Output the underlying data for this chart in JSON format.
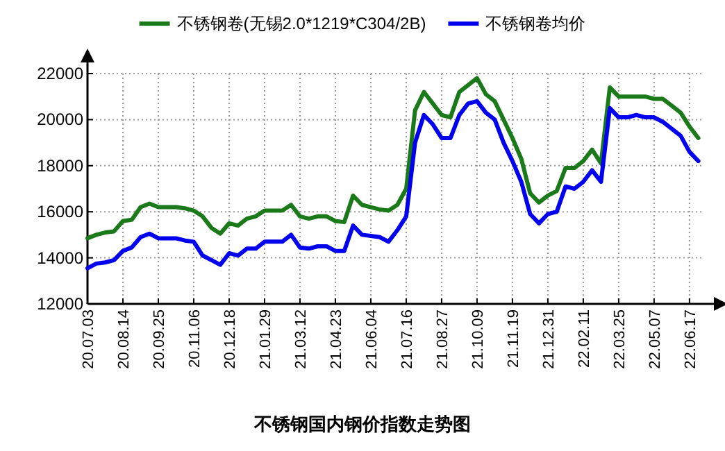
{
  "chart_data": {
    "type": "line",
    "title": "不锈钢国内钢价指数走势图",
    "categories": [
      "20.07.03",
      null,
      null,
      null,
      "20.08.14",
      null,
      null,
      null,
      "20.09.25",
      null,
      null,
      null,
      "20.11.06",
      null,
      null,
      null,
      "20.12.18",
      null,
      null,
      null,
      "21.01.29",
      null,
      null,
      null,
      "21.03.12",
      null,
      null,
      null,
      "21.04.23",
      null,
      null,
      null,
      "21.06.04",
      null,
      null,
      null,
      "21.07.16",
      null,
      null,
      null,
      "21.08.27",
      null,
      null,
      null,
      "21.10.09",
      null,
      null,
      null,
      "21.11.19",
      null,
      null,
      null,
      "21.12.31",
      null,
      null,
      null,
      "22.02.11",
      null,
      null,
      null,
      "22.03.25",
      null,
      null,
      null,
      "22.05.07",
      null,
      null,
      null,
      "22.06.17",
      null
    ],
    "series": [
      {
        "name": "不锈钢卷(无锡2.0*1219*C304/2B)",
        "color": "#1a7a1a",
        "values": [
          14850,
          15000,
          15100,
          15150,
          15600,
          15650,
          16200,
          16350,
          16200,
          16200,
          16200,
          16150,
          16050,
          15800,
          15300,
          15050,
          15500,
          15400,
          15700,
          15800,
          16050,
          16050,
          16050,
          16300,
          15800,
          15700,
          15800,
          15800,
          15600,
          15550,
          16700,
          16300,
          16200,
          16100,
          16050,
          16300,
          17000,
          20400,
          21200,
          20700,
          20200,
          20100,
          21200,
          21500,
          21800,
          21100,
          20800,
          20000,
          19200,
          18300,
          16800,
          16400,
          16700,
          16900,
          17900,
          17900,
          18200,
          18700,
          18100,
          21400,
          21000,
          21000,
          21000,
          21000,
          20900,
          20900,
          20600,
          20300,
          19700,
          19200
        ]
      },
      {
        "name": "不锈钢卷均价",
        "color": "#0000ee",
        "values": [
          13550,
          13750,
          13800,
          13900,
          14300,
          14450,
          14900,
          15050,
          14850,
          14850,
          14850,
          14750,
          14700,
          14100,
          13900,
          13700,
          14200,
          14100,
          14400,
          14400,
          14700,
          14700,
          14700,
          15000,
          14450,
          14400,
          14500,
          14500,
          14300,
          14300,
          15400,
          15000,
          14950,
          14900,
          14700,
          15200,
          15800,
          19000,
          20200,
          19800,
          19200,
          19200,
          20200,
          20700,
          20800,
          20300,
          20000,
          19000,
          18200,
          17300,
          15900,
          15500,
          15900,
          16000,
          17100,
          17000,
          17300,
          17800,
          17300,
          20500,
          20100,
          20100,
          20200,
          20100,
          20100,
          19900,
          19600,
          19300,
          18600,
          18200
        ]
      }
    ],
    "ylim": [
      12000,
      22000
    ],
    "yticks": [
      12000,
      14000,
      16000,
      18000,
      20000,
      22000
    ],
    "grid": true,
    "legend": "top"
  }
}
